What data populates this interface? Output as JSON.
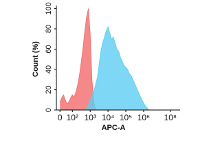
{
  "chart_data": {
    "type": "area",
    "xlabel": "APC-A",
    "ylabel": "Count (%)",
    "x": [
      1.3,
      1.4,
      1.5,
      1.6,
      1.7,
      1.8,
      1.9,
      2.0,
      2.1,
      2.2,
      2.3,
      2.4,
      2.5,
      2.6,
      2.7,
      2.8,
      2.9,
      3.0,
      3.1,
      3.2,
      3.3,
      3.4,
      3.5,
      3.6,
      3.7,
      3.8,
      3.9,
      4.0,
      4.1,
      4.2,
      4.3,
      4.4,
      4.5,
      4.6,
      4.7,
      4.8,
      4.9,
      5.0,
      5.1,
      5.2,
      5.3,
      5.4,
      5.5,
      5.6,
      5.7,
      5.8,
      5.9,
      6.0,
      6.1,
      6.2,
      6.3
    ],
    "series": [
      {
        "color": "#f26b6b",
        "values": [
          8,
          12,
          15,
          10,
          6,
          8,
          12,
          15,
          13,
          18,
          25,
          35,
          48,
          62,
          78,
          92,
          100,
          75,
          30,
          8,
          0,
          0,
          0,
          0,
          0,
          0,
          0,
          0,
          0,
          0,
          0,
          0,
          0,
          0,
          0,
          0,
          0,
          0,
          0,
          0,
          0,
          0,
          0,
          0,
          0,
          0,
          0,
          0,
          0,
          0,
          0
        ]
      },
      {
        "color": "#5ccdf2",
        "values": [
          0,
          0,
          0,
          0,
          0,
          0,
          0,
          0,
          0,
          0,
          0,
          0,
          0,
          0,
          0,
          2,
          5,
          10,
          14,
          18,
          25,
          32,
          45,
          58,
          66,
          72,
          78,
          82,
          76,
          70,
          72,
          66,
          60,
          58,
          52,
          48,
          44,
          42,
          40,
          36,
          34,
          30,
          26,
          22,
          18,
          14,
          10,
          7,
          4,
          2,
          0
        ]
      }
    ],
    "xlim": [
      1.1,
      8.05
    ],
    "xticks": [
      {
        "value": 1.3,
        "label": "0"
      },
      {
        "value": 2,
        "label": "10²"
      },
      {
        "value": 3,
        "label": "10³"
      },
      {
        "value": 4,
        "label": "10⁴"
      },
      {
        "value": 5,
        "label": "10⁵"
      },
      {
        "value": 6,
        "label": "10⁶"
      },
      {
        "value": 7.5,
        "label": "10⁸"
      }
    ],
    "ylim": [
      0,
      103
    ],
    "yticks": [
      0,
      20,
      40,
      60,
      80,
      100
    ]
  }
}
